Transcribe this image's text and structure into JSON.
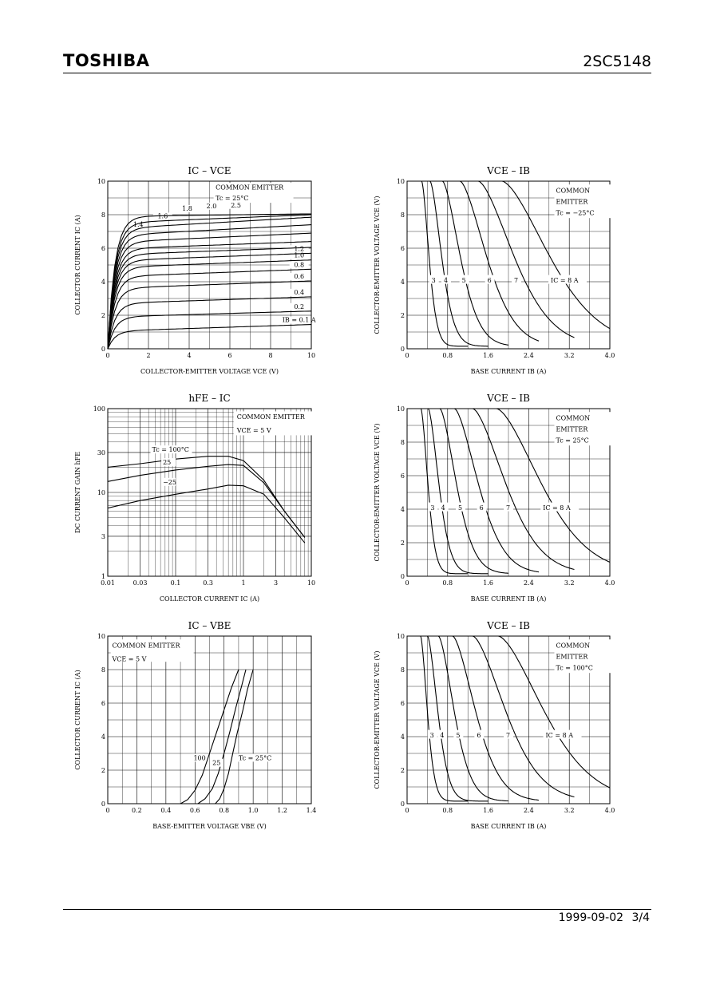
{
  "header": {
    "brand": "TOSHIBA",
    "part_number": "2SC5148"
  },
  "footer": {
    "date": "1999-09-02",
    "page": "3/4"
  },
  "chart_data": [
    {
      "id": "ic_vce",
      "type": "line",
      "title": "IC – VCE",
      "xlabel": "COLLECTOR-EMITTER VOLTAGE   VCE   (V)",
      "ylabel": "COLLECTOR CURRENT   IC   (A)",
      "xlim": [
        0,
        10
      ],
      "ylim": [
        0,
        10
      ],
      "xticks": [
        "0",
        "2",
        "4",
        "6",
        "8",
        "10"
      ],
      "yticks": [
        "0",
        "2",
        "4",
        "6",
        "8",
        "10"
      ],
      "annotations": [
        "COMMON EMITTER",
        "Tc = 25°C"
      ],
      "series": [
        {
          "name": "IB = 0.1 A",
          "sat": 1.05,
          "end": 1.45
        },
        {
          "name": "0.2",
          "sat": 1.9,
          "end": 2.25
        },
        {
          "name": "0.4",
          "sat": 2.7,
          "end": 3.1
        },
        {
          "name": "0.6",
          "sat": 3.6,
          "end": 4.05
        },
        {
          "name": "0.8",
          "sat": 4.3,
          "end": 4.75
        },
        {
          "name": "1.0",
          "sat": 4.85,
          "end": 5.3
        },
        {
          "name": "1.2",
          "sat": 5.25,
          "end": 5.7
        },
        {
          "name": "",
          "sat": 5.6,
          "end": 6.05
        },
        {
          "name": "",
          "sat": 5.95,
          "end": 6.4
        },
        {
          "name": "1.4",
          "sat": 6.35,
          "end": 6.9
        },
        {
          "name": "1.6",
          "sat": 6.75,
          "end": 7.4
        },
        {
          "name": "1.8",
          "sat": 7.15,
          "end": 7.85
        },
        {
          "name": "2.0",
          "sat": 7.5,
          "end": 8.0
        },
        {
          "name": "2.5",
          "sat": 7.9,
          "end": 8.05
        }
      ]
    },
    {
      "id": "vce_ib_m25",
      "type": "line",
      "title": "VCE – IB",
      "xlabel": "BASE CURRENT   IB   (A)",
      "ylabel": "COLLECTOR-EMITTER VOLTAGE   VCE   (V)",
      "xlim": [
        0,
        4.0
      ],
      "ylim": [
        0,
        10
      ],
      "xticks": [
        "0",
        "0.8",
        "1.6",
        "2.4",
        "3.2",
        "4.0"
      ],
      "yticks": [
        "0",
        "2",
        "4",
        "6",
        "8",
        "10"
      ],
      "annotations": [
        "COMMON",
        "EMITTER",
        "Tc = −25°C"
      ],
      "series": [
        {
          "name": "3",
          "knee": 0.4,
          "x_end": 1.2
        },
        {
          "name": "4",
          "knee": 0.63,
          "x_end": 1.6
        },
        {
          "name": "5",
          "knee": 0.97,
          "x_end": 2.0
        },
        {
          "name": "6",
          "knee": 1.45,
          "x_end": 2.6
        },
        {
          "name": "7",
          "knee": 1.95,
          "x_end": 3.3
        },
        {
          "name": "IC = 8 A",
          "knee": 2.6,
          "x_end": 4.0
        }
      ]
    },
    {
      "id": "hfe_ic",
      "type": "line",
      "title": "hFE – IC",
      "xlabel": "COLLECTOR CURRENT   IC   (A)",
      "ylabel": "DC CURRENT GAIN   hFE",
      "xscale": "log",
      "yscale": "log",
      "xlim": [
        0.01,
        10
      ],
      "ylim": [
        1,
        100
      ],
      "xticks": [
        "0.01",
        "0.03",
        "0.1",
        "0.3",
        "1",
        "3",
        "10"
      ],
      "yticks": [
        "1",
        "3",
        "10",
        "30",
        "100"
      ],
      "annotations": [
        "COMMON EMITTER",
        "VCE = 5 V"
      ],
      "series": [
        {
          "name": "Tc = 100°C",
          "x": [
            0.01,
            0.03,
            0.1,
            0.3,
            0.6,
            1,
            2,
            4,
            8
          ],
          "y": [
            20,
            22,
            25,
            27,
            27,
            24,
            14,
            6,
            2.9
          ]
        },
        {
          "name": "25",
          "x": [
            0.01,
            0.03,
            0.1,
            0.3,
            0.6,
            1,
            2,
            4,
            8
          ],
          "y": [
            13.5,
            16,
            18.5,
            20.5,
            21.5,
            21,
            13,
            6,
            2.9
          ]
        },
        {
          "name": "−25",
          "x": [
            0.01,
            0.03,
            0.1,
            0.3,
            0.6,
            1,
            2,
            4,
            8
          ],
          "y": [
            6.5,
            8,
            9.5,
            11,
            12.2,
            12,
            9.5,
            5,
            2.5
          ]
        }
      ]
    },
    {
      "id": "vce_ib_25",
      "type": "line",
      "title": "VCE – IB",
      "xlabel": "BASE CURRENT   IB   (A)",
      "ylabel": "COLLECTOR-EMITTER VOLTAGE   VCE   (V)",
      "xlim": [
        0,
        4.0
      ],
      "ylim": [
        0,
        10
      ],
      "xticks": [
        "0",
        "0.8",
        "1.6",
        "2.4",
        "3.2",
        "4.0"
      ],
      "yticks": [
        "0",
        "2",
        "4",
        "6",
        "8",
        "10"
      ],
      "annotations": [
        "COMMON",
        "EMITTER",
        "Tc = 25°C"
      ],
      "series": [
        {
          "name": "3",
          "knee": 0.38,
          "x_end": 1.2
        },
        {
          "name": "4",
          "knee": 0.58,
          "x_end": 1.6
        },
        {
          "name": "5",
          "knee": 0.9,
          "x_end": 2.0
        },
        {
          "name": "6",
          "knee": 1.3,
          "x_end": 2.6
        },
        {
          "name": "7",
          "knee": 1.8,
          "x_end": 3.3
        },
        {
          "name": "IC = 8 A",
          "knee": 2.45,
          "x_end": 4.0
        }
      ]
    },
    {
      "id": "ic_vbe",
      "type": "line",
      "title": "IC – VBE",
      "xlabel": "BASE-EMITTER VOLTAGE   VBE   (V)",
      "ylabel": "COLLECTOR CURRENT   IC   (A)",
      "xlim": [
        0,
        1.4
      ],
      "ylim": [
        0,
        10
      ],
      "xticks": [
        "0",
        "0.2",
        "0.4",
        "0.6",
        "0.8",
        "1.0",
        "1.2",
        "1.4"
      ],
      "yticks": [
        "0",
        "2",
        "4",
        "6",
        "8",
        "10"
      ],
      "annotations": [
        "COMMON EMITTER",
        "VCE = 5 V"
      ],
      "series": [
        {
          "name": "100",
          "x": [
            0.5,
            0.55,
            0.6,
            0.65,
            0.7,
            0.75,
            0.8,
            0.85,
            0.9
          ],
          "y": [
            0,
            0.25,
            0.8,
            1.7,
            3.0,
            4.3,
            5.6,
            6.9,
            8
          ]
        },
        {
          "name": "25",
          "x": [
            0.62,
            0.67,
            0.72,
            0.76,
            0.8,
            0.84,
            0.88,
            0.92,
            0.95
          ],
          "y": [
            0,
            0.3,
            0.9,
            1.8,
            3.0,
            4.3,
            5.7,
            7.0,
            8
          ]
        },
        {
          "name": "Tc = 25°C",
          "x": [
            0.74,
            0.77,
            0.8,
            0.83,
            0.86,
            0.89,
            0.93,
            0.96,
            1.0
          ],
          "y": [
            0,
            0.3,
            0.9,
            1.8,
            3.0,
            4.2,
            5.6,
            6.8,
            8
          ]
        }
      ]
    },
    {
      "id": "vce_ib_100",
      "type": "line",
      "title": "VCE – IB",
      "xlabel": "BASE CURRENT   IB   (A)",
      "ylabel": "COLLECTOR-EMITTER VOLTAGE   VCE   (V)",
      "xlim": [
        0,
        4.0
      ],
      "ylim": [
        0,
        10
      ],
      "xticks": [
        "0",
        "0.8",
        "1.6",
        "2.4",
        "3.2",
        "4.0"
      ],
      "yticks": [
        "0",
        "2",
        "4",
        "6",
        "8",
        "10"
      ],
      "annotations": [
        "COMMON",
        "EMITTER",
        "Tc = 100°C"
      ],
      "series": [
        {
          "name": "3",
          "knee": 0.37,
          "x_end": 1.2
        },
        {
          "name": "4",
          "knee": 0.56,
          "x_end": 1.6
        },
        {
          "name": "5",
          "knee": 0.86,
          "x_end": 2.0
        },
        {
          "name": "6",
          "knee": 1.25,
          "x_end": 2.6
        },
        {
          "name": "7",
          "knee": 1.8,
          "x_end": 3.3
        },
        {
          "name": "IC = 8 A",
          "knee": 2.5,
          "x_end": 4.0
        }
      ]
    }
  ]
}
